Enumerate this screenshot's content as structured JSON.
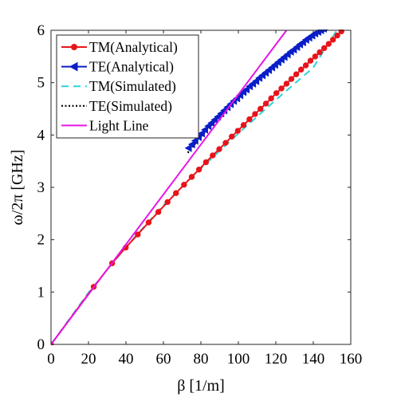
{
  "chart_data": {
    "type": "line",
    "title": "",
    "xlabel": "β [1/m]",
    "ylabel": "ω/2π [GHz]",
    "xlim": [
      0,
      160
    ],
    "ylim": [
      0,
      6
    ],
    "xticks": [
      0,
      20,
      40,
      60,
      80,
      100,
      120,
      140,
      160
    ],
    "yticks": [
      0,
      1,
      2,
      3,
      4,
      5,
      6
    ],
    "grid": false,
    "legend_position": "top-left",
    "series": [
      {
        "name": "TM(Analytical)",
        "color": "#e8141b",
        "line_style": "solid",
        "marker": "circle",
        "x": [
          0,
          22.8,
          32.6,
          39.9,
          46.3,
          52.1,
          57.3,
          62.2,
          66.7,
          71.0,
          75.1,
          79.0,
          82.7,
          86.3,
          89.8,
          93.2,
          96.5,
          99.7,
          102.8,
          105.9,
          108.9,
          111.8,
          114.7,
          117.5,
          120.3,
          123.0,
          125.7,
          128.3,
          130.9,
          133.5,
          136.0,
          138.5,
          141.0,
          143.4,
          145.8,
          148.2,
          150.5,
          152.8,
          155.0
        ],
        "y": [
          0,
          1.1,
          1.55,
          1.85,
          2.1,
          2.33,
          2.53,
          2.72,
          2.89,
          3.05,
          3.2,
          3.34,
          3.48,
          3.61,
          3.73,
          3.85,
          3.97,
          4.08,
          4.19,
          4.3,
          4.4,
          4.5,
          4.6,
          4.7,
          4.8,
          4.89,
          4.98,
          5.07,
          5.16,
          5.25,
          5.33,
          5.42,
          5.5,
          5.58,
          5.66,
          5.74,
          5.82,
          5.9,
          5.98
        ]
      },
      {
        "name": "TE(Analytical)",
        "color": "#0a1ec8",
        "line_style": "solid",
        "marker": "triangle-left",
        "x": [
          73.5,
          75.3,
          77.0,
          78.8,
          80.5,
          82.2,
          84.0,
          85.7,
          87.4,
          89.1,
          90.8,
          92.5,
          94.2,
          95.9,
          97.6,
          99.3,
          101.0,
          102.7,
          104.4,
          106.1,
          107.8,
          109.5,
          111.2,
          112.9,
          114.6,
          116.3,
          118.0,
          119.6,
          121.3,
          123.0,
          124.6,
          126.3,
          128.0,
          129.6,
          131.3,
          132.9,
          134.5,
          136.2,
          137.8,
          139.4,
          141.0,
          142.6,
          144.1,
          145.6
        ],
        "y": [
          3.75,
          3.82,
          3.89,
          3.96,
          4.03,
          4.1,
          4.17,
          4.23,
          4.29,
          4.35,
          4.41,
          4.47,
          4.53,
          4.59,
          4.65,
          4.7,
          4.76,
          4.82,
          4.87,
          4.93,
          4.98,
          5.03,
          5.09,
          5.14,
          5.19,
          5.24,
          5.29,
          5.34,
          5.39,
          5.44,
          5.49,
          5.54,
          5.59,
          5.63,
          5.68,
          5.73,
          5.77,
          5.82,
          5.86,
          5.9,
          5.94,
          5.97,
          6.0,
          6.03
        ]
      },
      {
        "name": "TM(Simulated)",
        "color": "#2ed3d6",
        "line_style": "dashed",
        "marker": "none",
        "x": [
          0,
          20,
          40,
          60,
          80,
          100,
          120,
          140,
          152.2
        ],
        "y": [
          0,
          0.99,
          1.86,
          2.66,
          3.36,
          4.03,
          4.67,
          5.29,
          5.98
        ]
      },
      {
        "name": "TE(Simulated)",
        "color": "#000000",
        "line_style": "dotted",
        "marker": "none",
        "x": [
          73.0,
          80.0,
          90.0,
          100.0,
          110.0,
          120.0,
          130.0,
          140.0,
          148.0
        ],
        "y": [
          3.66,
          3.97,
          4.36,
          4.73,
          5.07,
          5.38,
          5.66,
          5.91,
          6.02
        ]
      },
      {
        "name": "Light Line",
        "color": "#e615e6",
        "line_style": "solid",
        "marker": "none",
        "x": [
          0,
          125.7
        ],
        "y": [
          0,
          6.0
        ]
      }
    ]
  }
}
